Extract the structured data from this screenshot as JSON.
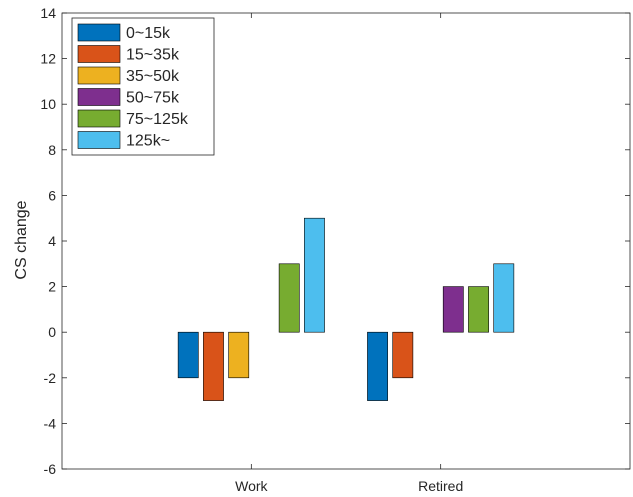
{
  "chart_data": {
    "type": "bar",
    "categories": [
      "Work",
      "Retired"
    ],
    "series": [
      {
        "name": "0~15k",
        "color": "#0072BD",
        "values": [
          -2,
          -3
        ]
      },
      {
        "name": "15~35k",
        "color": "#D95319",
        "values": [
          -3,
          -2
        ]
      },
      {
        "name": "35~50k",
        "color": "#EDB120",
        "values": [
          -2,
          0
        ]
      },
      {
        "name": "50~75k",
        "color": "#7E2F8E",
        "values": [
          0,
          2
        ]
      },
      {
        "name": "75~125k",
        "color": "#77AC30",
        "values": [
          3,
          2
        ]
      },
      {
        "name": "125k~",
        "color": "#4DBEEE",
        "values": [
          5,
          3
        ]
      }
    ],
    "ylabel": "CS change",
    "ylim": [
      -6,
      14
    ],
    "yticks": [
      -6,
      -4,
      -2,
      0,
      2,
      4,
      6,
      8,
      10,
      12,
      14
    ],
    "grid": false,
    "legend_position": "top-left"
  }
}
